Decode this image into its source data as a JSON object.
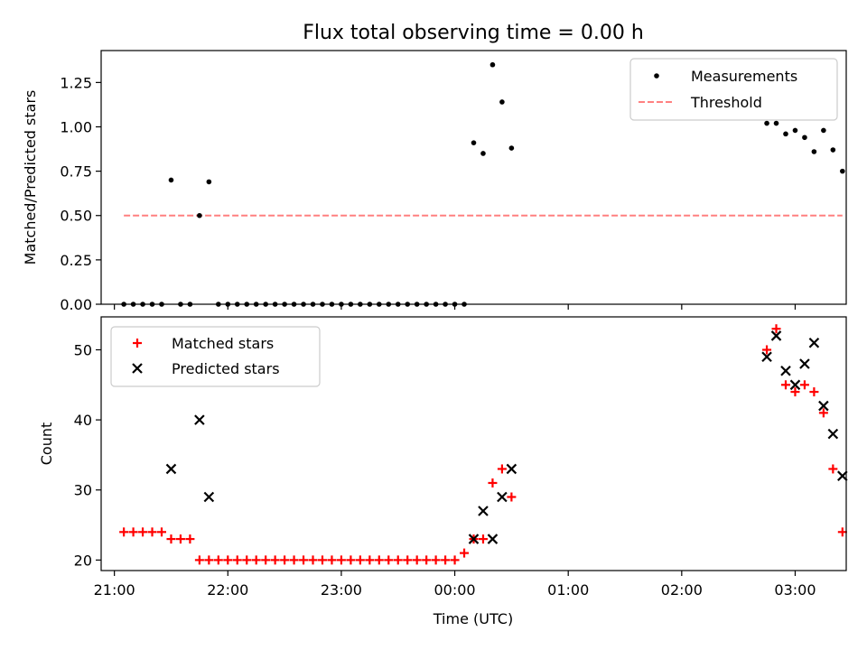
{
  "chart_data": {
    "title": "Flux total observing time = 0.00 h",
    "xlabel": "Time (UTC)",
    "xlim": [
      "20:53",
      "03:27"
    ],
    "x_ticks": [
      "21:00",
      "22:00",
      "23:00",
      "00:00",
      "01:00",
      "02:00",
      "03:00"
    ],
    "top": {
      "type": "scatter",
      "ylabel": "Matched/Predicted stars",
      "ylim": [
        0,
        1.43
      ],
      "y_ticks": [
        "0.00",
        "0.25",
        "0.50",
        "0.75",
        "1.00",
        "1.25"
      ],
      "legend_position": "top-right",
      "series": [
        {
          "name": "Measurements",
          "marker": "dot",
          "color": "#000000",
          "points": [
            [
              "21:05",
              0
            ],
            [
              "21:10",
              0
            ],
            [
              "21:15",
              0
            ],
            [
              "21:20",
              0
            ],
            [
              "21:25",
              0
            ],
            [
              "21:30",
              0.7
            ],
            [
              "21:35",
              0
            ],
            [
              "21:40",
              0
            ],
            [
              "21:45",
              0.5
            ],
            [
              "21:50",
              0.69
            ],
            [
              "21:55",
              0
            ],
            [
              "22:00",
              0
            ],
            [
              "22:05",
              0
            ],
            [
              "22:10",
              0
            ],
            [
              "22:15",
              0
            ],
            [
              "22:20",
              0
            ],
            [
              "22:25",
              0
            ],
            [
              "22:30",
              0
            ],
            [
              "22:35",
              0
            ],
            [
              "22:40",
              0
            ],
            [
              "22:45",
              0
            ],
            [
              "22:50",
              0
            ],
            [
              "22:55",
              0
            ],
            [
              "23:00",
              0
            ],
            [
              "23:05",
              0
            ],
            [
              "23:10",
              0
            ],
            [
              "23:15",
              0
            ],
            [
              "23:20",
              0
            ],
            [
              "23:25",
              0
            ],
            [
              "23:30",
              0
            ],
            [
              "23:35",
              0
            ],
            [
              "23:40",
              0
            ],
            [
              "23:45",
              0
            ],
            [
              "23:50",
              0
            ],
            [
              "23:55",
              0
            ],
            [
              "00:00",
              0
            ],
            [
              "00:05",
              0
            ],
            [
              "00:10",
              0.91
            ],
            [
              "00:15",
              0.85
            ],
            [
              "00:20",
              1.35
            ],
            [
              "00:25",
              1.14
            ],
            [
              "00:30",
              0.88
            ],
            [
              "02:45",
              1.02
            ],
            [
              "02:50",
              1.02
            ],
            [
              "02:55",
              0.96
            ],
            [
              "03:00",
              0.98
            ],
            [
              "03:05",
              0.94
            ],
            [
              "03:10",
              0.86
            ],
            [
              "03:15",
              0.98
            ],
            [
              "03:20",
              0.87
            ],
            [
              "03:25",
              0.75
            ]
          ]
        },
        {
          "name": "Threshold",
          "type": "line",
          "style": "dashed",
          "color": "#ff8080",
          "points": [
            [
              "21:05",
              0.5
            ],
            [
              "03:25",
              0.5
            ]
          ]
        }
      ]
    },
    "bottom": {
      "type": "scatter",
      "ylabel": "Count",
      "ylim": [
        18.5,
        54.7
      ],
      "y_ticks": [
        "20",
        "30",
        "40",
        "50"
      ],
      "legend_position": "top-left",
      "series": [
        {
          "name": "Matched stars",
          "marker": "plus",
          "color": "#ff0000",
          "points": [
            [
              "21:05",
              24
            ],
            [
              "21:10",
              24
            ],
            [
              "21:15",
              24
            ],
            [
              "21:20",
              24
            ],
            [
              "21:25",
              24
            ],
            [
              "21:30",
              23
            ],
            [
              "21:35",
              23
            ],
            [
              "21:40",
              23
            ],
            [
              "21:45",
              20
            ],
            [
              "21:50",
              20
            ],
            [
              "21:55",
              20
            ],
            [
              "22:00",
              20
            ],
            [
              "22:05",
              20
            ],
            [
              "22:10",
              20
            ],
            [
              "22:15",
              20
            ],
            [
              "22:20",
              20
            ],
            [
              "22:25",
              20
            ],
            [
              "22:30",
              20
            ],
            [
              "22:35",
              20
            ],
            [
              "22:40",
              20
            ],
            [
              "22:45",
              20
            ],
            [
              "22:50",
              20
            ],
            [
              "22:55",
              20
            ],
            [
              "23:00",
              20
            ],
            [
              "23:05",
              20
            ],
            [
              "23:10",
              20
            ],
            [
              "23:15",
              20
            ],
            [
              "23:20",
              20
            ],
            [
              "23:25",
              20
            ],
            [
              "23:30",
              20
            ],
            [
              "23:35",
              20
            ],
            [
              "23:40",
              20
            ],
            [
              "23:45",
              20
            ],
            [
              "23:50",
              20
            ],
            [
              "23:55",
              20
            ],
            [
              "00:00",
              20
            ],
            [
              "00:05",
              21
            ],
            [
              "00:10",
              23
            ],
            [
              "00:15",
              23
            ],
            [
              "00:20",
              31
            ],
            [
              "00:25",
              33
            ],
            [
              "00:30",
              29
            ],
            [
              "02:45",
              50
            ],
            [
              "02:50",
              53
            ],
            [
              "02:55",
              45
            ],
            [
              "03:00",
              44
            ],
            [
              "03:05",
              45
            ],
            [
              "03:10",
              44
            ],
            [
              "03:15",
              41
            ],
            [
              "03:20",
              33
            ],
            [
              "03:25",
              24
            ]
          ]
        },
        {
          "name": "Predicted stars",
          "marker": "x",
          "color": "#000000",
          "points": [
            [
              "21:30",
              33
            ],
            [
              "21:45",
              40
            ],
            [
              "21:50",
              29
            ],
            [
              "00:10",
              23
            ],
            [
              "00:15",
              27
            ],
            [
              "00:20",
              23
            ],
            [
              "00:25",
              29
            ],
            [
              "00:30",
              33
            ],
            [
              "02:45",
              49
            ],
            [
              "02:50",
              52
            ],
            [
              "02:55",
              47
            ],
            [
              "03:00",
              45
            ],
            [
              "03:05",
              48
            ],
            [
              "03:10",
              51
            ],
            [
              "03:15",
              42
            ],
            [
              "03:20",
              38
            ],
            [
              "03:25",
              32
            ]
          ]
        }
      ]
    }
  }
}
